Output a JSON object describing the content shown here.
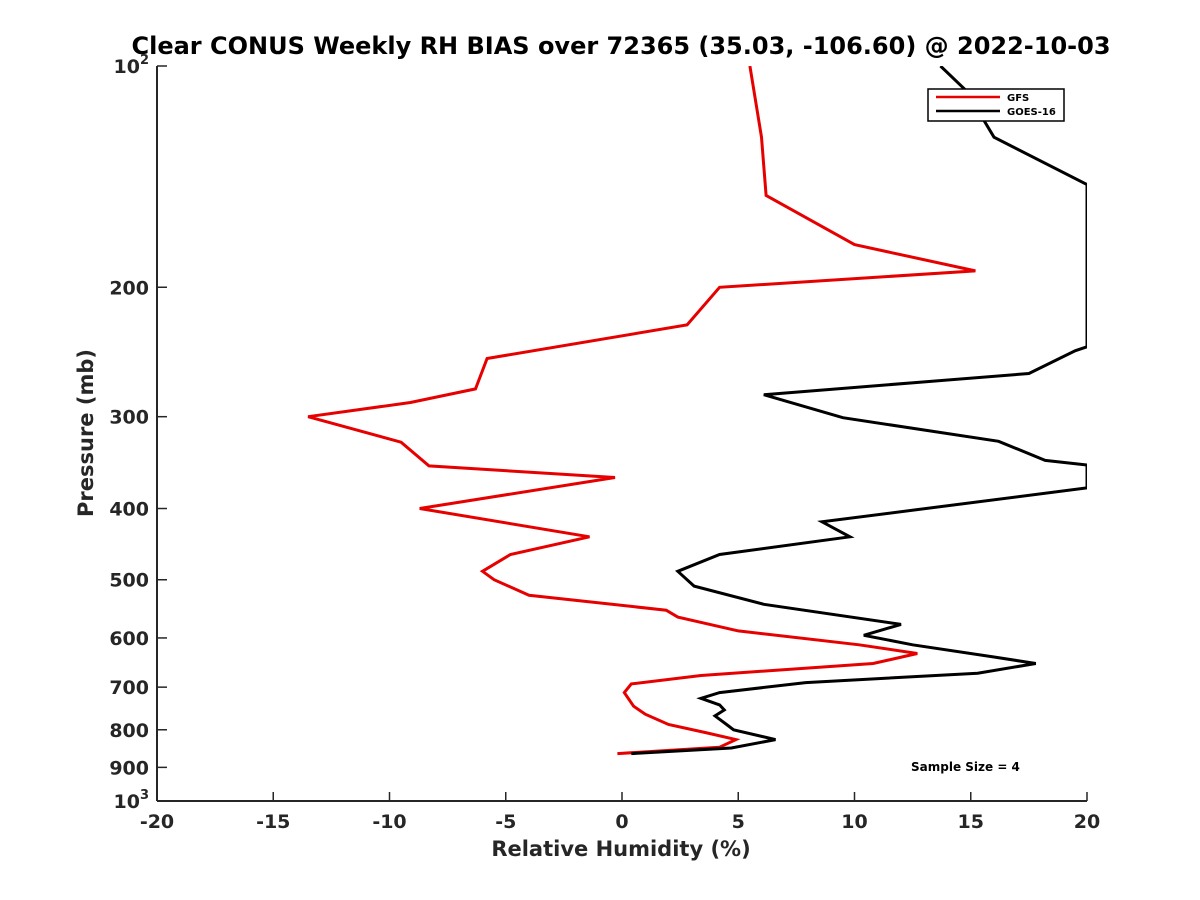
{
  "chart_data": {
    "type": "line",
    "title": "Clear CONUS Weekly RH BIAS over 72365 (35.03, -106.60) @ 2022-10-03",
    "xlabel": "Relative Humidity (%)",
    "ylabel": "Pressure (mb)",
    "xlim": [
      -20,
      20
    ],
    "ylim": [
      100,
      1000
    ],
    "y_scale": "log",
    "y_reversed": true,
    "grid": false,
    "legend_position": "top-right",
    "xticks": [
      "-20",
      "-15",
      "-10",
      "-5",
      "0",
      "5",
      "10",
      "15",
      "20"
    ],
    "yticks": [
      {
        "value": 100,
        "base": "10",
        "exp": "2"
      },
      {
        "value": 200,
        "label": "200"
      },
      {
        "value": 300,
        "label": "300"
      },
      {
        "value": 400,
        "label": "400"
      },
      {
        "value": 500,
        "label": "500"
      },
      {
        "value": 600,
        "label": "600"
      },
      {
        "value": 700,
        "label": "700"
      },
      {
        "value": 800,
        "label": "800"
      },
      {
        "value": 900,
        "label": "900"
      },
      {
        "value": 1000,
        "base": "10",
        "exp": "3"
      }
    ],
    "annotation": "Sample Size = 4",
    "series": [
      {
        "name": "GFS",
        "color": "#e60000",
        "points": [
          [
            5.5,
            100
          ],
          [
            6.0,
            125
          ],
          [
            6.2,
            150
          ],
          [
            10.0,
            175
          ],
          [
            15.2,
            190
          ],
          [
            4.2,
            200
          ],
          [
            2.8,
            225
          ],
          [
            -5.8,
            250
          ],
          [
            -6.3,
            275
          ],
          [
            -9.1,
            287
          ],
          [
            -13.5,
            300
          ],
          [
            -9.5,
            325
          ],
          [
            -8.3,
            350
          ],
          [
            -0.3,
            363
          ],
          [
            -8.7,
            400
          ],
          [
            -1.4,
            437
          ],
          [
            -4.8,
            462
          ],
          [
            -6.0,
            487
          ],
          [
            -5.5,
            500
          ],
          [
            -4.0,
            525
          ],
          [
            1.9,
            550
          ],
          [
            2.4,
            562
          ],
          [
            5.0,
            587
          ],
          [
            10.2,
            613
          ],
          [
            12.7,
            630
          ],
          [
            10.8,
            650
          ],
          [
            3.4,
            675
          ],
          [
            0.4,
            693
          ],
          [
            0.1,
            712
          ],
          [
            0.5,
            743
          ],
          [
            1.0,
            762
          ],
          [
            2.0,
            787
          ],
          [
            3.6,
            807
          ],
          [
            4.9,
            825
          ],
          [
            4.2,
            845
          ],
          [
            -0.2,
            862
          ]
        ]
      },
      {
        "name": "GOES-16",
        "color": "#000000",
        "points": [
          [
            13.7,
            100
          ],
          [
            14.8,
            108
          ],
          [
            16.0,
            125
          ],
          [
            20.0,
            145
          ],
          [
            20.0,
            241
          ],
          [
            19.5,
            244
          ],
          [
            17.5,
            262
          ],
          [
            6.1,
            280
          ],
          [
            9.5,
            301
          ],
          [
            16.2,
            324
          ],
          [
            18.2,
            344
          ],
          [
            20.0,
            349
          ],
          [
            20.0,
            375
          ],
          [
            8.6,
            417
          ],
          [
            9.8,
            437
          ],
          [
            4.2,
            462
          ],
          [
            2.4,
            487
          ],
          [
            3.1,
            510
          ],
          [
            6.1,
            540
          ],
          [
            12.0,
            575
          ],
          [
            10.4,
            595
          ],
          [
            12.5,
            613
          ],
          [
            16.0,
            637
          ],
          [
            17.8,
            650
          ],
          [
            15.3,
            670
          ],
          [
            7.9,
            690
          ],
          [
            4.2,
            712
          ],
          [
            3.4,
            725
          ],
          [
            4.2,
            740
          ],
          [
            4.4,
            752
          ],
          [
            4.0,
            766
          ],
          [
            4.5,
            787
          ],
          [
            4.8,
            800
          ],
          [
            6.6,
            825
          ],
          [
            4.7,
            847
          ],
          [
            0.4,
            862
          ]
        ]
      }
    ]
  }
}
